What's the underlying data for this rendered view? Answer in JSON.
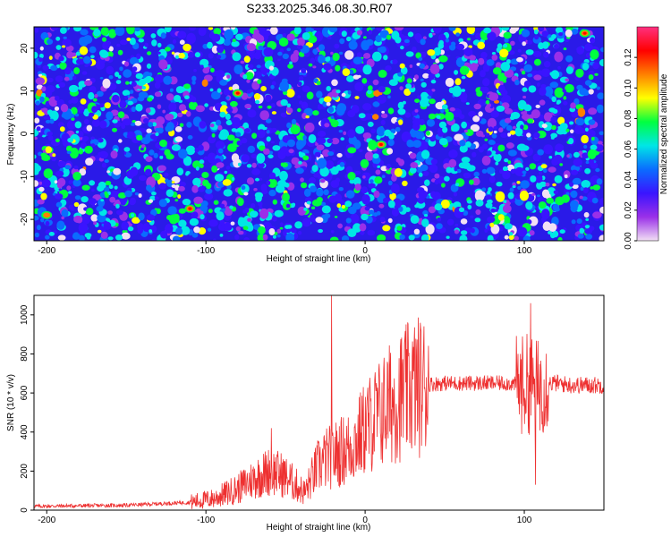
{
  "title": "S233.2025.346.08.30.R07",
  "chart_data": [
    {
      "type": "heatmap",
      "xlabel": "Height of straight line (km)",
      "ylabel": "Frequency (Hz)",
      "xlim": [
        -208,
        150
      ],
      "ylim": [
        -25,
        25
      ],
      "xticks": [
        -200,
        -100,
        0,
        100
      ],
      "yticks": [
        -20,
        -10,
        0,
        10,
        20
      ],
      "xtick_labels": [
        "-200",
        "-100",
        "0",
        "100"
      ],
      "ytick_labels": [
        "-20",
        "-10",
        "0",
        "10",
        "20"
      ],
      "colorbar": {
        "label": "Normalized spectral amplitude",
        "range": [
          0,
          0.14
        ],
        "ticks": [
          0.0,
          0.02,
          0.04,
          0.06,
          0.08,
          0.1,
          0.12
        ],
        "tick_labels": [
          "0.00",
          "0.02",
          "0.04",
          "0.06",
          "0.08",
          "0.10",
          "0.12"
        ],
        "colors": [
          "#f2e0f4",
          "#9a30e8",
          "#3a14ff",
          "#0a6cff",
          "#00e6e6",
          "#00ff40",
          "#ffff00",
          "#ff8000",
          "#ff0000",
          "#ff3080"
        ]
      },
      "peaks": [
        {
          "x": -80,
          "y": 9.5,
          "value": 0.13
        },
        {
          "x": 10,
          "y": -2.5,
          "value": 0.13
        },
        {
          "x": -110,
          "y": -17.5,
          "value": 0.12
        },
        {
          "x": -200,
          "y": -19,
          "value": 0.11
        },
        {
          "x": 138,
          "y": 23.5,
          "value": 0.12
        }
      ],
      "background_level": 0.035
    },
    {
      "type": "line",
      "xlabel": "Height of straight line (km)",
      "ylabel": "SNR (10 * v/v)",
      "xlim": [
        -208,
        150
      ],
      "ylim": [
        0,
        1100
      ],
      "xticks": [
        -200,
        -100,
        0,
        100
      ],
      "yticks": [
        0,
        200,
        400,
        600,
        800,
        1000
      ],
      "xtick_labels": [
        "-200",
        "-100",
        "0",
        "100"
      ],
      "ytick_labels": [
        "0",
        "200",
        "400",
        "600",
        "800",
        "1000"
      ],
      "color": "#ee3030",
      "series_envelope": {
        "x": [
          -208,
          -150,
          -110,
          -95,
          -80,
          -70,
          -60,
          -52,
          -45,
          -38,
          -30,
          -25,
          -20,
          -15,
          -10,
          -5,
          0,
          5,
          10,
          15,
          20,
          25,
          30,
          40,
          50,
          60,
          70,
          80,
          90,
          98,
          102,
          105,
          108,
          112,
          120,
          130,
          140,
          150
        ],
        "y": [
          20,
          25,
          40,
          60,
          110,
          160,
          200,
          180,
          140,
          90,
          220,
          260,
          280,
          300,
          320,
          360,
          420,
          460,
          500,
          540,
          570,
          600,
          630,
          645,
          650,
          650,
          650,
          650,
          650,
          640,
          650,
          640,
          620,
          650,
          650,
          640,
          640,
          640
        ]
      },
      "spikes": [
        {
          "x": -59,
          "y": 420
        },
        {
          "x": -21,
          "y": 1100
        },
        {
          "x": 104,
          "y": 1060
        },
        {
          "x": 107,
          "y": 130
        }
      ]
    }
  ]
}
